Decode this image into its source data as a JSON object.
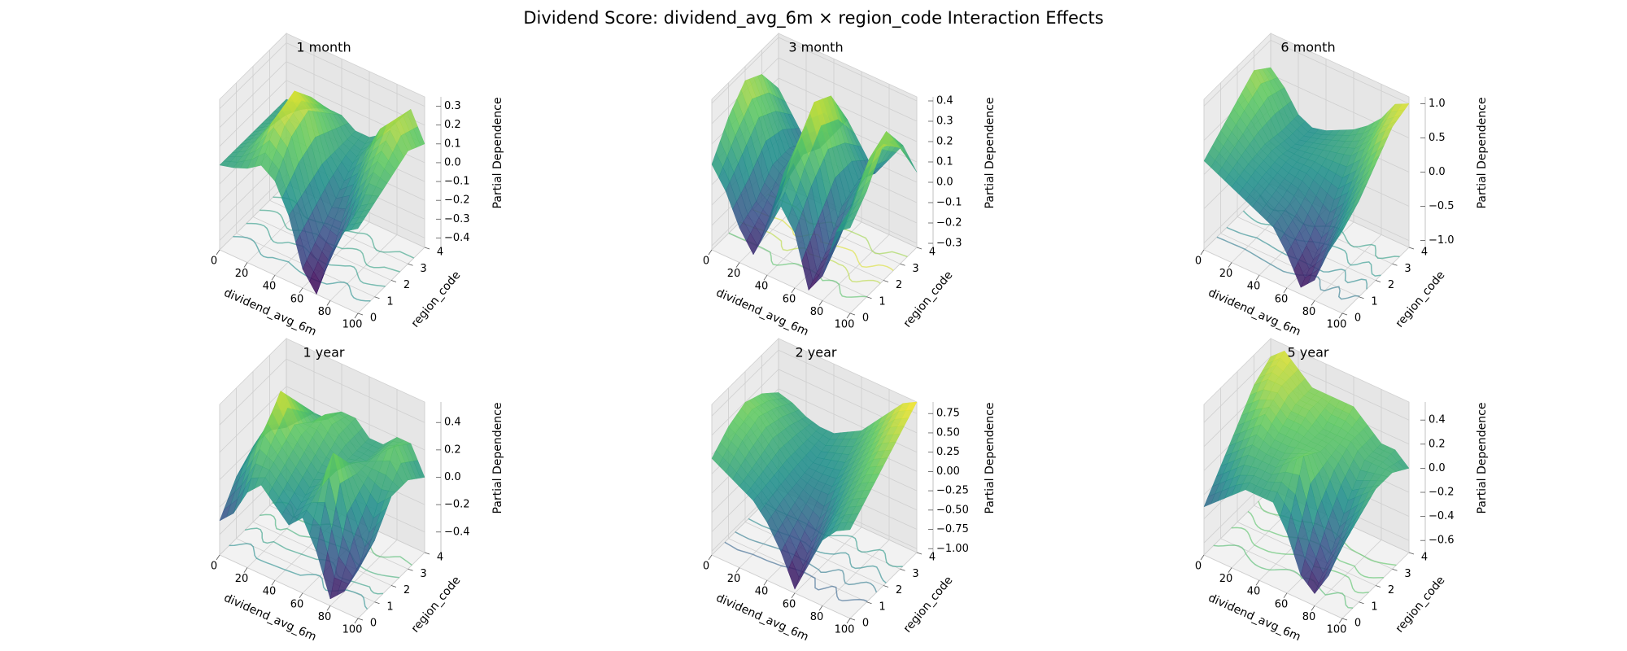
{
  "title": "Dividend Score: dividend_avg_6m × region_code Interaction Effects",
  "chart_data": [
    {
      "type": "surface3d",
      "title": "1 month",
      "xlabel": "dividend_avg_6m",
      "ylabel": "region_code",
      "zlabel": "Partial Dependence",
      "xlim": [
        0,
        100
      ],
      "ylim": [
        0,
        4
      ],
      "zlim": [
        -0.45,
        0.35
      ],
      "xticks": [
        0,
        20,
        40,
        60,
        80,
        100
      ],
      "yticks": [
        0,
        1,
        2,
        3,
        4
      ],
      "zticks": [
        -0.4,
        -0.3,
        -0.2,
        -0.1,
        0.0,
        0.1,
        0.2,
        0.3
      ],
      "ztick_labels": [
        "−0.4",
        "−0.3",
        "−0.2",
        "−0.1",
        "0.0",
        "0.1",
        "0.2",
        "0.3"
      ],
      "grid": true,
      "colormap": "viridis",
      "colormap_colors": [
        "#440154",
        "#3b528b",
        "#21918c",
        "#5ec962",
        "#fde725"
      ],
      "z_grid_rows_region_code_0_to_4": [
        [
          0.0,
          0.02,
          0.05,
          0.1,
          0.05,
          -0.1,
          -0.35,
          -0.45,
          -0.2,
          -0.05,
          0.0
        ],
        [
          0.0,
          0.05,
          0.15,
          0.28,
          0.2,
          -0.05,
          -0.25,
          -0.3,
          -0.15,
          0.0,
          0.05
        ],
        [
          0.0,
          0.05,
          0.18,
          0.32,
          0.25,
          0.0,
          -0.15,
          -0.1,
          0.05,
          0.15,
          0.1
        ],
        [
          0.0,
          0.03,
          0.1,
          0.2,
          0.15,
          0.0,
          -0.05,
          0.05,
          0.2,
          0.28,
          0.15
        ],
        [
          0.0,
          0.0,
          0.02,
          0.05,
          0.05,
          0.0,
          0.0,
          0.05,
          0.15,
          0.25,
          0.1
        ]
      ]
    },
    {
      "type": "surface3d",
      "title": "3 month",
      "xlabel": "dividend_avg_6m",
      "ylabel": "region_code",
      "zlabel": "Partial Dependence",
      "xlim": [
        0,
        100
      ],
      "ylim": [
        0,
        4
      ],
      "zlim": [
        -0.32,
        0.42
      ],
      "xticks": [
        0,
        20,
        40,
        60,
        80,
        100
      ],
      "yticks": [
        0,
        1,
        2,
        3,
        4
      ],
      "zticks": [
        -0.3,
        -0.2,
        -0.1,
        0.0,
        0.1,
        0.2,
        0.3,
        0.4
      ],
      "ztick_labels": [
        "−0.3",
        "−0.2",
        "−0.1",
        "0.0",
        "0.1",
        "0.2",
        "0.3",
        "0.4"
      ],
      "grid": true,
      "colormap": "viridis",
      "colormap_colors": [
        "#440154",
        "#3b528b",
        "#21918c",
        "#5ec962",
        "#fde725"
      ],
      "z_grid_rows_region_code_0_to_4": [
        [
          0.1,
          0.0,
          -0.15,
          -0.25,
          -0.1,
          0.05,
          -0.05,
          -0.3,
          -0.2,
          0.05,
          0.1
        ],
        [
          0.25,
          0.1,
          -0.1,
          -0.15,
          0.1,
          0.25,
          0.1,
          -0.2,
          -0.1,
          0.1,
          0.2
        ],
        [
          0.35,
          0.2,
          0.0,
          -0.05,
          0.2,
          0.4,
          0.2,
          -0.05,
          0.05,
          0.25,
          0.35
        ],
        [
          0.3,
          0.15,
          0.0,
          0.0,
          0.15,
          0.35,
          0.15,
          0.0,
          0.1,
          0.3,
          0.25
        ],
        [
          0.15,
          0.05,
          -0.05,
          -0.05,
          0.05,
          0.15,
          0.05,
          -0.05,
          0.05,
          0.15,
          0.05
        ]
      ]
    },
    {
      "type": "surface3d",
      "title": "6 month",
      "xlabel": "dividend_avg_6m",
      "ylabel": "region_code",
      "zlabel": "Partial Dependence",
      "xlim": [
        0,
        100
      ],
      "ylim": [
        0,
        4
      ],
      "zlim": [
        -1.1,
        1.1
      ],
      "xticks": [
        0,
        20,
        40,
        60,
        80,
        100
      ],
      "yticks": [
        0,
        1,
        2,
        3,
        4
      ],
      "zticks": [
        -1.0,
        -0.5,
        0.0,
        0.5,
        1.0
      ],
      "ztick_labels": [
        "−1.0",
        "−0.5",
        "0.0",
        "0.5",
        "1.0"
      ],
      "grid": true,
      "colormap": "viridis",
      "colormap_colors": [
        "#440154",
        "#3b528b",
        "#21918c",
        "#5ec962",
        "#fde725"
      ],
      "z_grid_rows_region_code_0_to_4": [
        [
          0.2,
          0.1,
          0.0,
          -0.1,
          -0.2,
          -0.3,
          -0.6,
          -1.0,
          -0.8,
          -0.3,
          0.1
        ],
        [
          0.4,
          0.25,
          0.1,
          0.0,
          -0.1,
          -0.2,
          -0.4,
          -0.7,
          -0.4,
          0.0,
          0.3
        ],
        [
          0.6,
          0.4,
          0.15,
          0.05,
          0.0,
          0.0,
          -0.1,
          -0.2,
          0.0,
          0.3,
          0.6
        ],
        [
          0.8,
          0.5,
          0.1,
          0.0,
          0.05,
          0.1,
          0.15,
          0.2,
          0.4,
          0.7,
          0.9
        ],
        [
          0.6,
          0.4,
          0.1,
          0.0,
          0.05,
          0.15,
          0.25,
          0.4,
          0.6,
          0.9,
          1.0
        ]
      ]
    },
    {
      "type": "surface3d",
      "title": "1 year",
      "xlabel": "dividend_avg_6m",
      "ylabel": "region_code",
      "zlabel": "Partial Dependence",
      "xlim": [
        0,
        100
      ],
      "ylim": [
        0,
        4
      ],
      "zlim": [
        -0.55,
        0.55
      ],
      "xticks": [
        0,
        20,
        40,
        60,
        80,
        100
      ],
      "yticks": [
        0,
        1,
        2,
        3,
        4
      ],
      "zticks": [
        -0.4,
        -0.2,
        0.0,
        0.2,
        0.4
      ],
      "ztick_labels": [
        "−0.4",
        "−0.2",
        "0.0",
        "0.2",
        "0.4"
      ],
      "grid": true,
      "colormap": "viridis",
      "colormap_colors": [
        "#440154",
        "#3b528b",
        "#21918c",
        "#5ec962",
        "#fde725"
      ],
      "z_grid_rows_region_code_0_to_4": [
        [
          -0.3,
          -0.2,
          0.0,
          0.1,
          0.0,
          -0.1,
          0.0,
          -0.2,
          -0.5,
          -0.4,
          -0.2
        ],
        [
          -0.1,
          0.1,
          0.3,
          0.2,
          0.1,
          0.0,
          0.1,
          0.4,
          0.0,
          -0.3,
          -0.1
        ],
        [
          0.0,
          0.2,
          0.5,
          0.3,
          0.2,
          0.1,
          0.1,
          0.2,
          0.1,
          0.0,
          0.1
        ],
        [
          0.0,
          0.1,
          0.3,
          0.2,
          0.3,
          0.2,
          0.1,
          0.1,
          0.2,
          0.3,
          0.1
        ],
        [
          -0.1,
          0.0,
          0.1,
          0.1,
          0.2,
          0.2,
          0.1,
          0.1,
          0.2,
          0.2,
          0.0
        ]
      ]
    },
    {
      "type": "surface3d",
      "title": "2 year",
      "xlabel": "dividend_avg_6m",
      "ylabel": "region_code",
      "zlabel": "Partial Dependence",
      "xlim": [
        0,
        100
      ],
      "ylim": [
        0,
        4
      ],
      "zlim": [
        -1.05,
        0.9
      ],
      "xticks": [
        0,
        20,
        40,
        60,
        80,
        100
      ],
      "yticks": [
        0,
        1,
        2,
        3,
        4
      ],
      "zticks": [
        -1.0,
        -0.75,
        -0.5,
        -0.25,
        0.0,
        0.25,
        0.5,
        0.75
      ],
      "ztick_labels": [
        "−1.00",
        "−0.75",
        "−0.50",
        "−0.25",
        "0.00",
        "0.25",
        "0.50",
        "0.75"
      ],
      "grid": true,
      "colormap": "viridis",
      "colormap_colors": [
        "#440154",
        "#3b528b",
        "#21918c",
        "#5ec962",
        "#fde725"
      ],
      "z_grid_rows_region_code_0_to_4": [
        [
          0.2,
          0.1,
          0.0,
          -0.1,
          -0.3,
          -0.6,
          -1.0,
          -0.6,
          -0.2,
          0.0,
          0.1
        ],
        [
          0.4,
          0.3,
          0.1,
          -0.05,
          -0.2,
          -0.4,
          -0.6,
          -0.3,
          0.0,
          0.2,
          0.3
        ],
        [
          0.5,
          0.4,
          0.2,
          0.0,
          -0.15,
          -0.2,
          -0.2,
          0.0,
          0.2,
          0.4,
          0.5
        ],
        [
          0.4,
          0.3,
          0.15,
          0.0,
          -0.1,
          -0.05,
          0.0,
          0.2,
          0.4,
          0.6,
          0.7
        ],
        [
          0.2,
          0.15,
          0.05,
          0.0,
          0.0,
          0.1,
          0.2,
          0.4,
          0.6,
          0.8,
          0.9
        ]
      ]
    },
    {
      "type": "surface3d",
      "title": "5 year",
      "xlabel": "dividend_avg_6m",
      "ylabel": "region_code",
      "zlabel": "Partial Dependence",
      "xlim": [
        0,
        100
      ],
      "ylim": [
        0,
        4
      ],
      "zlim": [
        -0.7,
        0.55
      ],
      "xticks": [
        0,
        20,
        40,
        60,
        80,
        100
      ],
      "yticks": [
        0,
        1,
        2,
        3,
        4
      ],
      "zticks": [
        -0.6,
        -0.4,
        -0.2,
        0.0,
        0.2,
        0.4
      ],
      "ztick_labels": [
        "−0.6",
        "−0.4",
        "−0.2",
        "0.0",
        "0.2",
        "0.4"
      ],
      "grid": true,
      "colormap": "viridis",
      "colormap_colors": [
        "#440154",
        "#3b528b",
        "#21918c",
        "#5ec962",
        "#fde725"
      ],
      "z_grid_rows_region_code_0_to_4": [
        [
          -0.3,
          -0.2,
          -0.1,
          0.0,
          0.0,
          0.0,
          -0.2,
          -0.5,
          -0.6,
          -0.4,
          -0.1
        ],
        [
          -0.1,
          0.0,
          0.1,
          0.1,
          0.1,
          0.2,
          0.3,
          -0.1,
          -0.4,
          -0.2,
          0.0
        ],
        [
          0.1,
          0.2,
          0.3,
          0.2,
          0.2,
          0.2,
          0.2,
          0.1,
          -0.1,
          0.0,
          0.1
        ],
        [
          0.3,
          0.4,
          0.4,
          0.3,
          0.3,
          0.2,
          0.2,
          0.2,
          0.1,
          0.1,
          0.1
        ],
        [
          0.4,
          0.5,
          0.4,
          0.3,
          0.3,
          0.3,
          0.3,
          0.2,
          0.1,
          0.1,
          0.0
        ]
      ]
    }
  ]
}
